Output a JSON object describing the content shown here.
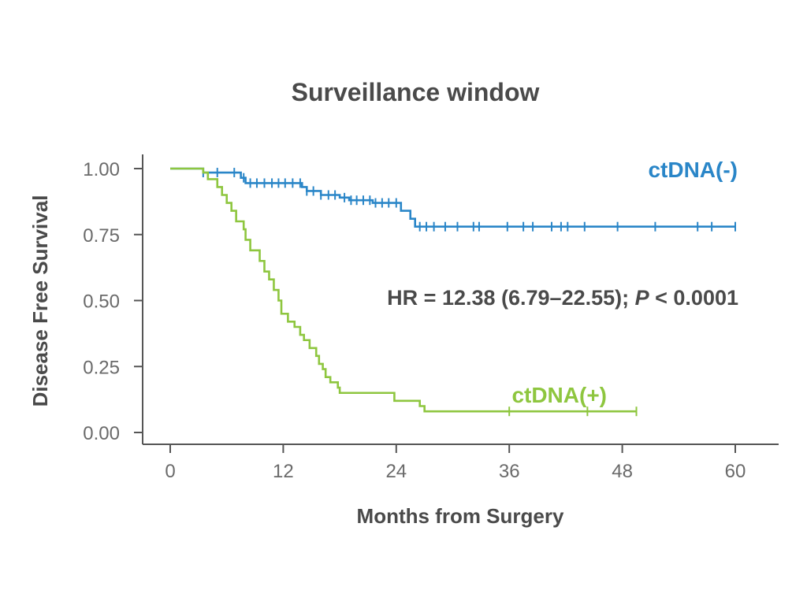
{
  "chart_data": {
    "type": "line",
    "title": "Surveillance window",
    "xlabel": "Months from Surgery",
    "ylabel": "Disease Free Survival",
    "xlim": [
      0,
      60
    ],
    "ylim": [
      0,
      1
    ],
    "xticks": [
      0,
      12,
      24,
      36,
      48,
      60
    ],
    "xtick_labels": [
      "0",
      "12",
      "24",
      "36",
      "48",
      "60"
    ],
    "yticks": [
      0,
      0.25,
      0.5,
      0.75,
      1.0
    ],
    "ytick_labels": [
      "0.00",
      "0.25",
      "0.50",
      "0.75",
      "1.00"
    ],
    "grid": false,
    "annotation": {
      "prefix": "HR = 12.38 (6.79–22.55); ",
      "p_symbol": "P",
      "suffix": " < 0.0001"
    },
    "series": [
      {
        "name": "ctDNA(-)",
        "color": "#2a86c8",
        "steps": [
          [
            0,
            1.0
          ],
          [
            3.5,
            0.985
          ],
          [
            7.5,
            0.965
          ],
          [
            8,
            0.945
          ],
          [
            14,
            0.93
          ],
          [
            14.5,
            0.915
          ],
          [
            16,
            0.9
          ],
          [
            18,
            0.89
          ],
          [
            19,
            0.88
          ],
          [
            21.5,
            0.87
          ],
          [
            24.5,
            0.84
          ],
          [
            25.5,
            0.81
          ],
          [
            26,
            0.78
          ],
          [
            60,
            0.78
          ]
        ],
        "censor": [
          3.5,
          5.0,
          6.8,
          7.8,
          8.5,
          9.2,
          10.0,
          10.8,
          11.5,
          12.2,
          13.0,
          13.8,
          14.5,
          15.2,
          16.0,
          16.8,
          17.5,
          18.5,
          19.2,
          19.8,
          20.5,
          21.2,
          21.8,
          22.5,
          23.2,
          24.0,
          26.5,
          27.2,
          28.0,
          29.2,
          30.5,
          32.2,
          32.8,
          35.8,
          37.5,
          38.5,
          40.5,
          41.5,
          42.2,
          44.0,
          47.5,
          51.5,
          56.0,
          57.5,
          60.0
        ]
      },
      {
        "name": "ctDNA(+)",
        "color": "#8ec63f",
        "steps": [
          [
            0,
            1.0
          ],
          [
            3.5,
            0.985
          ],
          [
            4,
            0.96
          ],
          [
            5,
            0.93
          ],
          [
            5.5,
            0.9
          ],
          [
            6,
            0.87
          ],
          [
            6.5,
            0.84
          ],
          [
            7,
            0.8
          ],
          [
            7.8,
            0.77
          ],
          [
            8,
            0.73
          ],
          [
            8.5,
            0.69
          ],
          [
            9.5,
            0.65
          ],
          [
            10,
            0.61
          ],
          [
            10.5,
            0.58
          ],
          [
            11,
            0.54
          ],
          [
            11.5,
            0.5
          ],
          [
            11.8,
            0.45
          ],
          [
            12.5,
            0.42
          ],
          [
            13.2,
            0.4
          ],
          [
            13.8,
            0.37
          ],
          [
            14.2,
            0.35
          ],
          [
            14.8,
            0.32
          ],
          [
            15.5,
            0.29
          ],
          [
            15.8,
            0.26
          ],
          [
            16.2,
            0.24
          ],
          [
            16.5,
            0.21
          ],
          [
            17,
            0.19
          ],
          [
            17.8,
            0.17
          ],
          [
            18,
            0.15
          ],
          [
            23.8,
            0.12
          ],
          [
            26.5,
            0.1
          ],
          [
            27,
            0.08
          ],
          [
            49.5,
            0.08
          ]
        ],
        "censor": [
          36.0,
          44.3,
          49.5
        ]
      }
    ]
  }
}
